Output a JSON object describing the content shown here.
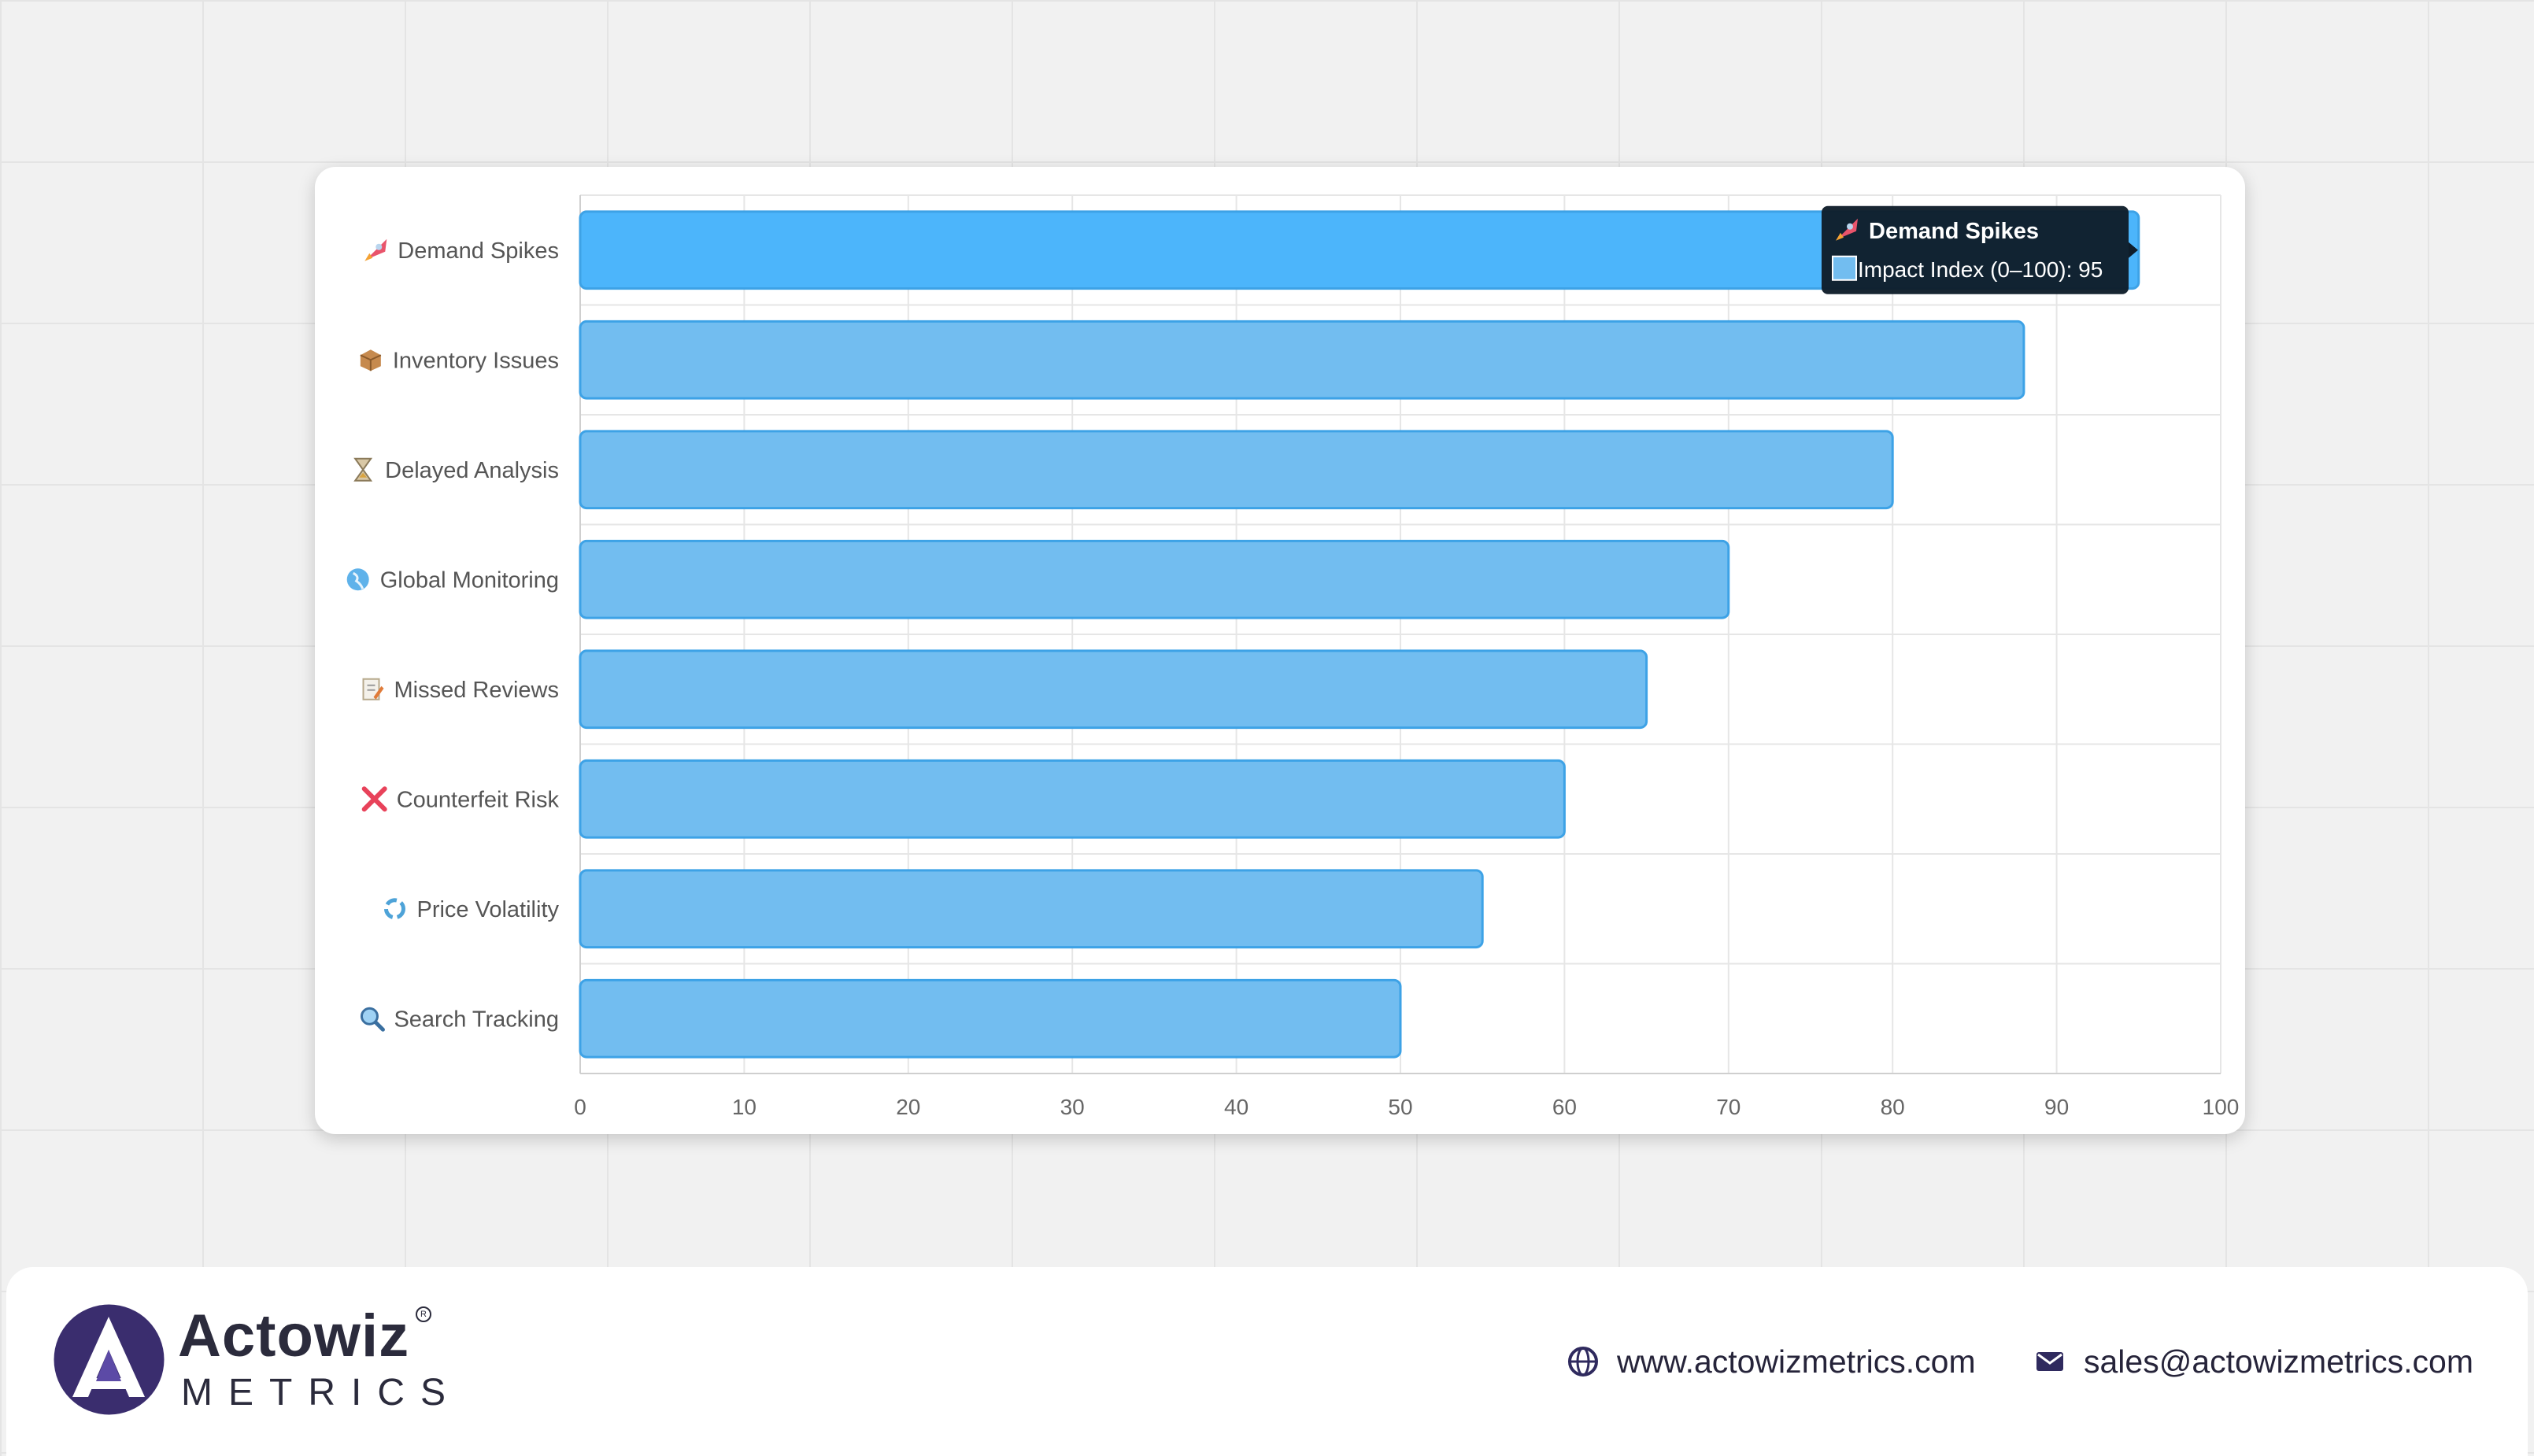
{
  "chart_data": {
    "type": "bar",
    "orientation": "horizontal",
    "categories": [
      {
        "icon": "rocket-icon",
        "label": "Demand Spikes"
      },
      {
        "icon": "package-icon",
        "label": "Inventory Issues"
      },
      {
        "icon": "hourglass-icon",
        "label": "Delayed Analysis"
      },
      {
        "icon": "globe-icon",
        "label": "Global Monitoring"
      },
      {
        "icon": "memo-icon",
        "label": "Missed Reviews"
      },
      {
        "icon": "cross-mark-icon",
        "label": "Counterfeit Risk"
      },
      {
        "icon": "cycle-icon",
        "label": "Price Volatility"
      },
      {
        "icon": "magnifier-icon",
        "label": "Search Tracking"
      }
    ],
    "series": [
      {
        "name": "Impact Index (0–100)",
        "values": [
          95,
          88,
          80,
          70,
          65,
          60,
          55,
          50
        ]
      }
    ],
    "xlim": [
      0,
      100
    ],
    "xticks": [
      0,
      10,
      20,
      30,
      40,
      50,
      60,
      70,
      80,
      90,
      100
    ],
    "grid": true,
    "colors": {
      "bar": "#72bdf0",
      "bar_active": "#4cb5fb",
      "bar_border": "#3da2e6"
    },
    "tooltip": {
      "title": "Demand Spikes",
      "line": "Impact Index (0–100): 95",
      "icon": "rocket-icon",
      "category_index": 0
    }
  },
  "footer": {
    "brand_name": "Actowiz",
    "brand_sub": "METRICS",
    "website": "www.actowizmetrics.com",
    "email": "sales@actowizmetrics.com"
  }
}
